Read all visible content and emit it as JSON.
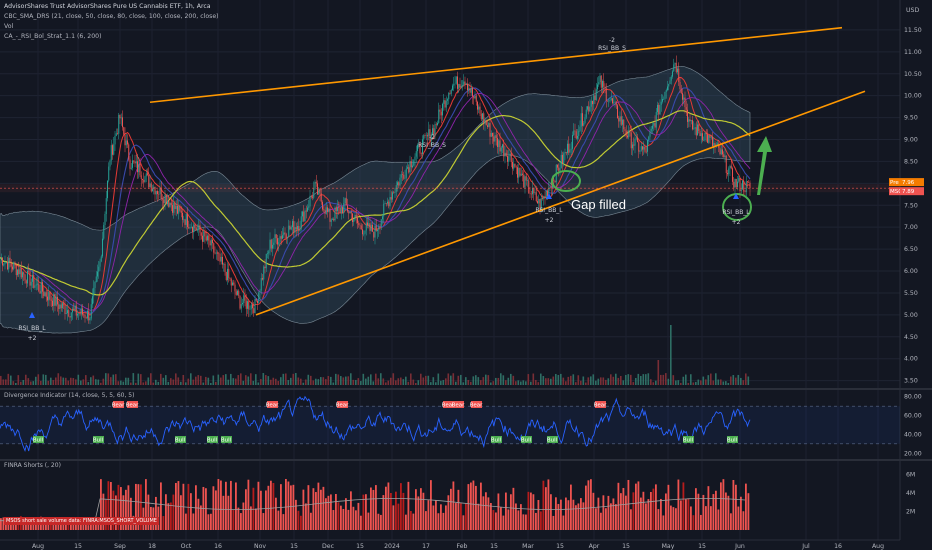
{
  "header": {
    "title": "AdvisorShares Trust AdvisorShares Pure US Cannabis ETF, 1h, Arca",
    "indicator_1": "CBC_SMA_DRS (21, close, 50, close, 80, close, 100, close, 200, close)",
    "indicator_2": "Vol",
    "indicator_3": "CA_-_RSI_Bol_Strat_1.1 (6, 200)"
  },
  "currency": "USD",
  "divergence_title": "Divergence Indicator (14, close, 5, 5, 60, 5)",
  "finra_title": "FINRA Shorts (, 20)",
  "finra_note": "MSOS short sale volume data: FINRA:MSOS_SHORT_VOLUME",
  "price_tags": [
    {
      "label": "Pre",
      "value": "7.96",
      "color": "#f57c00"
    },
    {
      "label": "MSOS",
      "value": "7.89",
      "color": "#ef5350"
    }
  ],
  "annotations": {
    "gap_filled": "Gap filled",
    "rsi_bb_l": "RSI_BB_L",
    "rsi_bb_s": "RSI_BB_S",
    "plus2": "+2",
    "minus2": "-2"
  },
  "chart_data": {
    "type": "line",
    "y_axis": {
      "ticks": [
        "11.50",
        "11.00",
        "10.50",
        "10.00",
        "9.50",
        "9.00",
        "8.50",
        "8.00",
        "7.50",
        "7.00",
        "6.50",
        "6.00",
        "5.50",
        "5.00",
        "4.50",
        "4.00",
        "3.50"
      ],
      "range": [
        3.4,
        12.0
      ]
    },
    "x_axis": {
      "ticks": [
        "Aug",
        "15",
        "Sep",
        "18",
        "Oct",
        "16",
        "Nov",
        "15",
        "Dec",
        "15",
        "2024",
        "17",
        "Feb",
        "15",
        "Mar",
        "15",
        "Apr",
        "15",
        "May",
        "15",
        "Jun",
        "Jul",
        "16",
        "Aug"
      ]
    },
    "price_series": {
      "name": "MSOS",
      "x_index": [
        0,
        8,
        16,
        24,
        30,
        36,
        40,
        44,
        48,
        52,
        56,
        60,
        66,
        72,
        78,
        84,
        90,
        96,
        102,
        108,
        114,
        120,
        126,
        132,
        138,
        144,
        150,
        156,
        162,
        168,
        174,
        180,
        186,
        192,
        198,
        204,
        210,
        216,
        222,
        228,
        234,
        240,
        246,
        252,
        258,
        264,
        270,
        276,
        282,
        288,
        294,
        300
      ],
      "values": [
        6.3,
        6.0,
        5.6,
        5.2,
        5.05,
        5.0,
        6.2,
        8.6,
        9.5,
        8.5,
        8.3,
        8.0,
        7.7,
        7.3,
        7.0,
        6.6,
        6.0,
        5.3,
        5.2,
        6.6,
        6.9,
        7.1,
        7.9,
        7.2,
        7.5,
        7.0,
        6.9,
        7.7,
        8.3,
        8.8,
        9.3,
        10.2,
        10.4,
        9.6,
        9.0,
        8.6,
        8.0,
        7.5,
        8.2,
        8.9,
        9.6,
        10.3,
        9.7,
        9.0,
        8.7,
        9.8,
        10.8,
        9.3,
        9.1,
        8.7,
        8.0,
        7.9
      ]
    },
    "trendlines": [
      {
        "name": "upper",
        "start": 9.85,
        "end": 11.55
      },
      {
        "name": "lower",
        "start": 5.0,
        "end": 10.1
      }
    ],
    "volume_panel": {
      "type": "bar"
    },
    "divergence_panel": {
      "ticks": [
        "80.00",
        "60.00",
        "40.00",
        "20.00"
      ],
      "range": [
        15,
        85
      ],
      "bull_labels": "Bull",
      "bear_labels": "Bear"
    },
    "finra_panel": {
      "type": "bar",
      "ticks": [
        "6M",
        "4M",
        "2M"
      ],
      "range": [
        0,
        7
      ]
    }
  }
}
